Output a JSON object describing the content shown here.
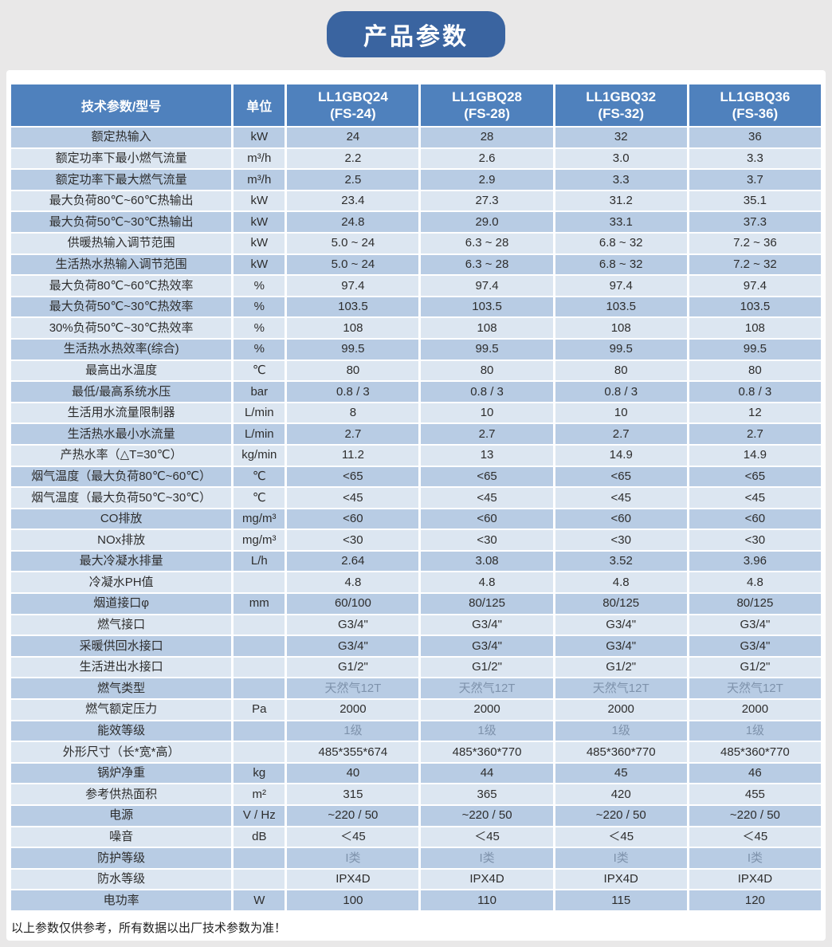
{
  "title": "产品参数",
  "footer": "以上参数仅供参考，所有数据以出厂技术参数为准！",
  "colors": {
    "badge_blue": "#3a64a0",
    "header_blue": "#4f81bd",
    "row_dark": "#b8cce4",
    "row_light": "#dce6f1",
    "page_bg": "#e9e8e8"
  },
  "table": {
    "header": {
      "param": "技术参数/型号",
      "unit": "单位",
      "models": [
        {
          "name": "LL1GBQ24",
          "code": "(FS-24)"
        },
        {
          "name": "LL1GBQ28",
          "code": "(FS-28)"
        },
        {
          "name": "LL1GBQ32",
          "code": "(FS-32)"
        },
        {
          "name": "LL1GBQ36",
          "code": "(FS-36)"
        }
      ]
    },
    "rows": [
      {
        "label": "额定热输入",
        "unit": "kW",
        "values": [
          "24",
          "28",
          "32",
          "36"
        ]
      },
      {
        "label": "额定功率下最小燃气流量",
        "unit": "m³/h",
        "values": [
          "2.2",
          "2.6",
          "3.0",
          "3.3"
        ]
      },
      {
        "label": "额定功率下最大燃气流量",
        "unit": "m³/h",
        "values": [
          "2.5",
          "2.9",
          "3.3",
          "3.7"
        ]
      },
      {
        "label": "最大负荷80℃~60℃热输出",
        "unit": "kW",
        "values": [
          "23.4",
          "27.3",
          "31.2",
          "35.1"
        ]
      },
      {
        "label": "最大负荷50℃~30℃热输出",
        "unit": "kW",
        "values": [
          "24.8",
          "29.0",
          "33.1",
          "37.3"
        ]
      },
      {
        "label": "供暖热输入调节范围",
        "unit": "kW",
        "values": [
          "5.0 ~ 24",
          "6.3 ~ 28",
          "6.8 ~ 32",
          "7.2 ~ 36"
        ]
      },
      {
        "label": "生活热水热输入调节范围",
        "unit": "kW",
        "values": [
          "5.0 ~ 24",
          "6.3 ~ 28",
          "6.8 ~ 32",
          "7.2 ~ 32"
        ]
      },
      {
        "label": "最大负荷80℃~60℃热效率",
        "unit": "%",
        "values": [
          "97.4",
          "97.4",
          "97.4",
          "97.4"
        ]
      },
      {
        "label": "最大负荷50℃~30℃热效率",
        "unit": "%",
        "values": [
          "103.5",
          "103.5",
          "103.5",
          "103.5"
        ]
      },
      {
        "label": "30%负荷50℃~30℃热效率",
        "unit": "%",
        "values": [
          "108",
          "108",
          "108",
          "108"
        ]
      },
      {
        "label": "生活热水热效率(综合)",
        "unit": "%",
        "values": [
          "99.5",
          "99.5",
          "99.5",
          "99.5"
        ]
      },
      {
        "label": "最高出水温度",
        "unit": "℃",
        "values": [
          "80",
          "80",
          "80",
          "80"
        ]
      },
      {
        "label": "最低/最高系统水压",
        "unit": "bar",
        "values": [
          "0.8 / 3",
          "0.8 / 3",
          "0.8 / 3",
          "0.8 / 3"
        ]
      },
      {
        "label": "生活用水流量限制器",
        "unit": "L/min",
        "values": [
          "8",
          "10",
          "10",
          "12"
        ]
      },
      {
        "label": "生活热水最小水流量",
        "unit": "L/min",
        "values": [
          "2.7",
          "2.7",
          "2.7",
          "2.7"
        ]
      },
      {
        "label": "产热水率（△T=30℃）",
        "unit": "kg/min",
        "values": [
          "11.2",
          "13",
          "14.9",
          "14.9"
        ]
      },
      {
        "label": "烟气温度（最大负荷80℃~60℃）",
        "unit": "℃",
        "values": [
          "<65",
          "<65",
          "<65",
          "<65"
        ]
      },
      {
        "label": "烟气温度（最大负荷50℃~30℃）",
        "unit": "℃",
        "values": [
          "<45",
          "<45",
          "<45",
          "<45"
        ]
      },
      {
        "label": "CO排放",
        "unit": "mg/m³",
        "values": [
          "<60",
          "<60",
          "<60",
          "<60"
        ]
      },
      {
        "label": "NOx排放",
        "unit": "mg/m³",
        "values": [
          "<30",
          "<30",
          "<30",
          "<30"
        ]
      },
      {
        "label": "最大冷凝水排量",
        "unit": "L/h",
        "values": [
          "2.64",
          "3.08",
          "3.52",
          "3.96"
        ]
      },
      {
        "label": "冷凝水PH值",
        "unit": "",
        "values": [
          "4.8",
          "4.8",
          "4.8",
          "4.8"
        ]
      },
      {
        "label": "烟道接口φ",
        "unit": "mm",
        "values": [
          "60/100",
          "80/125",
          "80/125",
          "80/125"
        ]
      },
      {
        "label": "燃气接口",
        "unit": "",
        "values": [
          "G3/4\"",
          "G3/4\"",
          "G3/4\"",
          "G3/4\""
        ]
      },
      {
        "label": "采暖供回水接口",
        "unit": "",
        "values": [
          "G3/4\"",
          "G3/4\"",
          "G3/4\"",
          "G3/4\""
        ]
      },
      {
        "label": "生活进出水接口",
        "unit": "",
        "values": [
          "G1/2\"",
          "G1/2\"",
          "G1/2\"",
          "G1/2\""
        ]
      },
      {
        "label": "燃气类型",
        "unit": "",
        "muted": true,
        "values": [
          "天然气12T",
          "天然气12T",
          "天然气12T",
          "天然气12T"
        ]
      },
      {
        "label": "燃气额定压力",
        "unit": "Pa",
        "values": [
          "2000",
          "2000",
          "2000",
          "2000"
        ]
      },
      {
        "label": "能效等级",
        "unit": "",
        "muted": true,
        "values": [
          "1级",
          "1级",
          "1级",
          "1级"
        ]
      },
      {
        "label": "外形尺寸（长*宽*高）",
        "unit": "",
        "values": [
          "485*355*674",
          "485*360*770",
          "485*360*770",
          "485*360*770"
        ]
      },
      {
        "label": "锅炉净重",
        "unit": "kg",
        "values": [
          "40",
          "44",
          "45",
          "46"
        ]
      },
      {
        "label": "参考供热面积",
        "unit": "m²",
        "values": [
          "315",
          "365",
          "420",
          "455"
        ]
      },
      {
        "label": "电源",
        "unit": "V / Hz",
        "values": [
          "~220 / 50",
          "~220 / 50",
          "~220 / 50",
          "~220 / 50"
        ]
      },
      {
        "label": "噪音",
        "unit": "dB",
        "values": [
          "＜45",
          "＜45",
          "＜45",
          "＜45"
        ]
      },
      {
        "label": "防护等级",
        "unit": "",
        "muted": true,
        "values": [
          "I类",
          "I类",
          "I类",
          "I类"
        ]
      },
      {
        "label": "防水等级",
        "unit": "",
        "values": [
          "IPX4D",
          "IPX4D",
          "IPX4D",
          "IPX4D"
        ]
      },
      {
        "label": "电功率",
        "unit": "W",
        "values": [
          "100",
          "110",
          "115",
          "120"
        ]
      }
    ]
  }
}
